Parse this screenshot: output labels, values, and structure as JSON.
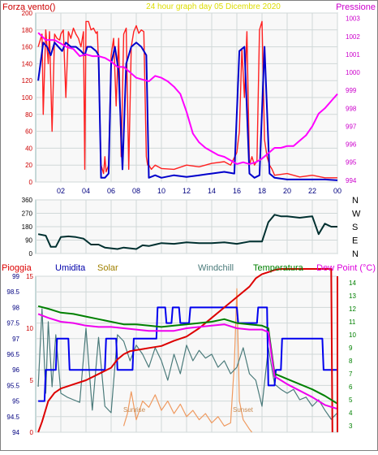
{
  "header": {
    "left": "Forza vento()",
    "center": "24 hour graph day   05 Dicembre 2020",
    "right": "Pressione"
  },
  "legend": {
    "pioggia": "Pioggia",
    "umidita": "Umidita",
    "solar": "Solar",
    "windchill": "Windchill",
    "temperatura": "Temperatura",
    "dewpoint": "Dew Point (°C)"
  },
  "colors": {
    "gust": "#ff2020",
    "wind": "#0000cc",
    "pressure": "#ff00ff",
    "direction": "#003030",
    "rain": "#dd0000",
    "humidity": "#0000ee",
    "solar": "#ef9a60",
    "windchill": "#4a7a7a",
    "temperature": "#008000",
    "dewpoint": "#ee00ee",
    "grid": "#d0d8d8",
    "frame": "#8fb4b4",
    "bg": "#f8f8f8"
  },
  "annotations": {
    "sunrise": "Sunrise",
    "sunset": "Sunset"
  },
  "chart_data": [
    {
      "type": "line",
      "x_ticks": [
        "02",
        "04",
        "06",
        "08",
        "10",
        "12",
        "14",
        "16",
        "18",
        "20",
        "22",
        "00"
      ],
      "x_range": [
        0,
        24
      ],
      "y_left": {
        "ticks": [
          0,
          20,
          40,
          60,
          80,
          100,
          120,
          140,
          160,
          180,
          200
        ],
        "range": [
          0,
          200
        ]
      },
      "y_right": {
        "ticks": [
          994,
          995,
          996,
          997,
          998,
          999,
          1000,
          1001,
          1002,
          1003
        ],
        "range": [
          993.9,
          1003.3
        ]
      },
      "series": [
        {
          "key": "gust",
          "axis": "left",
          "x": [
            0.2,
            0.5,
            0.6,
            0.8,
            1.0,
            1.1,
            1.3,
            1.5,
            1.7,
            1.9,
            2.0,
            2.2,
            2.4,
            2.6,
            2.8,
            3.0,
            3.2,
            3.4,
            3.6,
            3.8,
            3.9,
            4.0,
            4.2,
            4.4,
            4.6,
            4.8,
            4.9,
            5.0,
            5.2,
            5.4,
            5.5,
            5.6,
            5.8,
            6.0,
            6.2,
            6.4,
            6.6,
            6.8,
            7.0,
            7.2,
            7.4,
            7.6,
            7.8,
            8.0,
            8.2,
            8.4,
            8.6,
            8.8,
            8.9,
            9.0,
            9.2,
            9.5,
            10,
            11,
            12,
            13,
            14,
            15,
            15.5,
            16.0,
            16.2,
            16.4,
            16.6,
            16.8,
            17.0,
            17.2,
            17.4,
            17.6,
            17.8,
            18.0,
            18.2,
            18.4,
            18.6,
            18.8,
            19,
            20,
            21,
            22,
            23,
            24
          ],
          "y": [
            160,
            175,
            80,
            180,
            140,
            178,
            60,
            175,
            170,
            168,
            175,
            180,
            100,
            178,
            170,
            182,
            175,
            170,
            160,
            178,
            15,
            190,
            190,
            180,
            182,
            176,
            178,
            140,
            20,
            10,
            30,
            12,
            20,
            150,
            170,
            90,
            170,
            30,
            175,
            182,
            15,
            160,
            178,
            185,
            176,
            180,
            178,
            30,
            20,
            20,
            15,
            20,
            16,
            15,
            20,
            18,
            22,
            24,
            20,
            35,
            60,
            158,
            100,
            178,
            20,
            30,
            20,
            25,
            180,
            190,
            50,
            30,
            20,
            15,
            8,
            10,
            6,
            8,
            5,
            5
          ]
        },
        {
          "key": "wind",
          "axis": "left",
          "x": [
            0.2,
            0.6,
            0.9,
            1.2,
            1.5,
            1.8,
            2.1,
            2.4,
            2.8,
            3.2,
            3.6,
            3.9,
            4.1,
            4.4,
            4.8,
            5.0,
            5.2,
            5.5,
            5.8,
            6.0,
            6.3,
            6.6,
            6.9,
            7.2,
            7.6,
            8.0,
            8.4,
            8.8,
            9.0,
            9.5,
            10,
            11,
            12,
            13,
            14,
            15,
            15.8,
            16.2,
            16.6,
            17.0,
            17.4,
            17.8,
            18.2,
            18.6,
            19,
            20,
            21,
            22,
            23,
            24
          ],
          "y": [
            120,
            165,
            160,
            150,
            165,
            160,
            155,
            165,
            160,
            160,
            155,
            150,
            160,
            160,
            155,
            150,
            5,
            5,
            10,
            140,
            160,
            130,
            15,
            140,
            160,
            165,
            160,
            150,
            5,
            8,
            5,
            8,
            6,
            8,
            10,
            12,
            10,
            155,
            160,
            10,
            5,
            8,
            160,
            10,
            5,
            3,
            3,
            3,
            3,
            2
          ]
        },
        {
          "key": "pressure",
          "axis": "right",
          "x": [
            0.2,
            0.8,
            1.5,
            2.0,
            2.5,
            3.0,
            3.5,
            4.0,
            4.5,
            5.0,
            5.5,
            6.0,
            6.5,
            7.0,
            7.5,
            8.0,
            8.5,
            9.0,
            9.5,
            10,
            10.5,
            11,
            11.5,
            12,
            12.5,
            13,
            13.5,
            14,
            14.5,
            15,
            15.5,
            16,
            16.5,
            17,
            17.5,
            18,
            18.5,
            19,
            19.5,
            20,
            20.5,
            21,
            21.5,
            22,
            22.5,
            23,
            23.5,
            24
          ],
          "y": [
            1002.2,
            1001.8,
            1001.8,
            1001.6,
            1001.4,
            1001.3,
            1000.9,
            1001.0,
            1000.9,
            1000.9,
            1000.8,
            1000.6,
            1000.3,
            1000.3,
            1000.0,
            999.7,
            999.6,
            999.5,
            999.8,
            999.7,
            999.5,
            999.2,
            998.8,
            997.8,
            996.6,
            996.1,
            995.8,
            995.6,
            995.4,
            995.3,
            995.1,
            994.9,
            995.0,
            994.9,
            995.0,
            995.2,
            995.5,
            995.8,
            995.8,
            995.9,
            995.9,
            996.2,
            996.5,
            997.0,
            997.7,
            998.0,
            998.4,
            998.8
          ]
        }
      ]
    },
    {
      "type": "line",
      "x_range": [
        0,
        24
      ],
      "y_left": {
        "ticks": [
          0,
          90,
          180,
          270,
          360
        ],
        "range": [
          0,
          360
        ]
      },
      "y_right_labels": [
        "N",
        "W",
        "S",
        "E",
        "N"
      ],
      "series": [
        {
          "key": "direction",
          "x": [
            0.2,
            0.8,
            1.2,
            1.6,
            2.0,
            2.6,
            3.2,
            3.8,
            4.4,
            5.0,
            5.5,
            6.0,
            6.5,
            7.0,
            7.5,
            8.0,
            8.5,
            9.0,
            9.5,
            10,
            11,
            12,
            13,
            14,
            15,
            16,
            17,
            18,
            18.5,
            19,
            19.5,
            20,
            21,
            22,
            22.5,
            23,
            23.5,
            24
          ],
          "y": [
            130,
            120,
            45,
            45,
            110,
            115,
            110,
            100,
            60,
            60,
            40,
            35,
            30,
            40,
            35,
            30,
            55,
            50,
            60,
            70,
            65,
            75,
            70,
            70,
            75,
            65,
            80,
            80,
            210,
            260,
            250,
            250,
            240,
            250,
            130,
            200,
            180,
            180
          ]
        }
      ]
    },
    {
      "type": "line",
      "x_range": [
        0,
        24
      ],
      "y_left": {
        "ticks": [
          94,
          94.5,
          95,
          95.5,
          96,
          96.5,
          97,
          97.5,
          98,
          98.5,
          99
        ],
        "range": [
          94,
          99
        ]
      },
      "y_inner_left": {
        "ticks": [
          0,
          5,
          10,
          15
        ],
        "range": [
          0,
          15
        ]
      },
      "y_right": {
        "ticks": [
          3,
          4,
          5,
          6,
          7,
          8,
          9,
          10,
          11,
          12,
          13,
          14
        ],
        "range": [
          2.5,
          14.5
        ]
      },
      "series": [
        {
          "key": "rain",
          "axis": "inner_left",
          "x": [
            0.2,
            0.5,
            1.0,
            1.5,
            2.0,
            3.0,
            4.0,
            5.0,
            6.0,
            6.5,
            7.0,
            7.5,
            8.0,
            8.5,
            9,
            10,
            11,
            12,
            13,
            14,
            15,
            16,
            17,
            17.5,
            18,
            18.5,
            19,
            19.5,
            23.5,
            23.6
          ],
          "y": [
            0,
            1,
            3,
            3.8,
            4.2,
            4.6,
            5,
            5.6,
            6.2,
            7,
            7.5,
            7.8,
            7.9,
            8.0,
            8.1,
            8.3,
            8.8,
            9.2,
            10,
            11,
            12,
            13,
            14,
            14.8,
            15.2,
            15.4,
            15.6,
            15.7,
            15.7,
            0
          ]
        },
        {
          "key": "humidity",
          "axis": "left",
          "x": [
            0.2,
            0.7,
            0.8,
            1.6,
            1.7,
            2.6,
            2.7,
            5.5,
            5.6,
            6.4,
            6.5,
            7.7,
            7.8,
            9.6,
            9.7,
            10.3,
            10.4,
            10.8,
            10.9,
            11.4,
            11.5,
            12.2,
            12.3,
            16.0,
            16.1,
            17.6,
            17.7,
            18.4,
            18.5,
            19.0,
            19.1,
            19.5,
            19.6,
            22.8,
            22.9,
            24
          ],
          "y": [
            95,
            95,
            96,
            96,
            97,
            97,
            96,
            96,
            97,
            97,
            96,
            96,
            97,
            97,
            98,
            98,
            97.5,
            97.5,
            98,
            98,
            97.5,
            97.5,
            98,
            98,
            97.5,
            97.5,
            98,
            98,
            95.5,
            95.5,
            96,
            96,
            97,
            97,
            96,
            96
          ]
        },
        {
          "key": "solar",
          "axis": "left",
          "x": [
            7.0,
            7.3,
            7.6,
            8.0,
            8.5,
            9.0,
            9.5,
            10,
            10.5,
            11,
            11.5,
            12,
            12.5,
            13,
            13.5,
            14,
            14.5,
            15,
            15.5,
            15.8,
            16.0,
            16.2,
            16.5,
            17,
            17.2
          ],
          "y": [
            94.2,
            94.6,
            95.3,
            94.4,
            95.0,
            94.8,
            95.2,
            94.7,
            95.0,
            94.6,
            94.9,
            94.5,
            94.7,
            94.4,
            94.6,
            94.3,
            94.5,
            94.2,
            94.3,
            96.2,
            98.6,
            95.0,
            94.4,
            94.1,
            94.0
          ]
        },
        {
          "key": "windchill",
          "axis": "right",
          "x": [
            0.2,
            0.5,
            0.8,
            1.0,
            1.3,
            1.6,
            2.0,
            2.5,
            3.0,
            3.5,
            4.0,
            4.5,
            5.0,
            5.5,
            6.0,
            6.5,
            7.0,
            7.5,
            8.0,
            8.5,
            9.0,
            9.5,
            10,
            10.5,
            11,
            11.5,
            12,
            12.5,
            13,
            13.5,
            14,
            14.5,
            15,
            15.5,
            16,
            16.5,
            17,
            17.5,
            18,
            18.5,
            19,
            19.5,
            20,
            20.5,
            21,
            21.5,
            22,
            22.5,
            23,
            23.5,
            24
          ],
          "y": [
            6,
            12,
            5.5,
            11,
            6,
            10,
            5.5,
            5.2,
            5.0,
            4.8,
            10.5,
            4.2,
            9.8,
            4.5,
            4.0,
            10.0,
            9.5,
            8.0,
            9.2,
            8.5,
            7.5,
            9.0,
            8.0,
            6.5,
            8.5,
            7.0,
            9.2,
            8.0,
            8.8,
            8.2,
            8.5,
            7.5,
            8.0,
            7.0,
            7.5,
            9.0,
            7.0,
            6.5,
            4.5,
            9.0,
            6.2,
            5.8,
            5.5,
            5.8,
            5.0,
            5.2,
            4.5,
            5.0,
            4.2,
            3.5,
            4.0
          ]
        },
        {
          "key": "temperature",
          "axis": "right",
          "x": [
            0.2,
            1,
            2,
            3,
            4,
            5,
            6,
            7,
            8,
            9,
            10,
            11,
            12,
            13,
            14,
            15,
            16,
            17,
            18,
            18.5,
            19,
            19.5,
            20,
            21,
            22,
            23,
            24
          ],
          "y": [
            12.2,
            12.0,
            11.7,
            11.6,
            11.4,
            11.2,
            11.0,
            10.8,
            10.8,
            10.7,
            10.6,
            10.7,
            10.8,
            10.9,
            11.0,
            11.2,
            10.9,
            10.8,
            10.7,
            10.5,
            7.0,
            6.8,
            6.6,
            6.2,
            5.8,
            5.3,
            4.7
          ]
        },
        {
          "key": "dewpoint",
          "axis": "right",
          "x": [
            0.2,
            1,
            2,
            3,
            4,
            5,
            6,
            7,
            8,
            9,
            10,
            11,
            12,
            13,
            14,
            15,
            16,
            17,
            18,
            18.5,
            19,
            19.5,
            20,
            21,
            22,
            23,
            24
          ],
          "y": [
            11.6,
            11.3,
            11.0,
            10.9,
            10.7,
            10.6,
            10.6,
            10.5,
            10.4,
            10.3,
            10.3,
            10.3,
            10.5,
            10.6,
            10.7,
            10.8,
            10.5,
            10.4,
            10.4,
            10.2,
            6.8,
            6.5,
            6.2,
            5.7,
            5.2,
            4.6,
            4.3
          ]
        }
      ]
    }
  ]
}
